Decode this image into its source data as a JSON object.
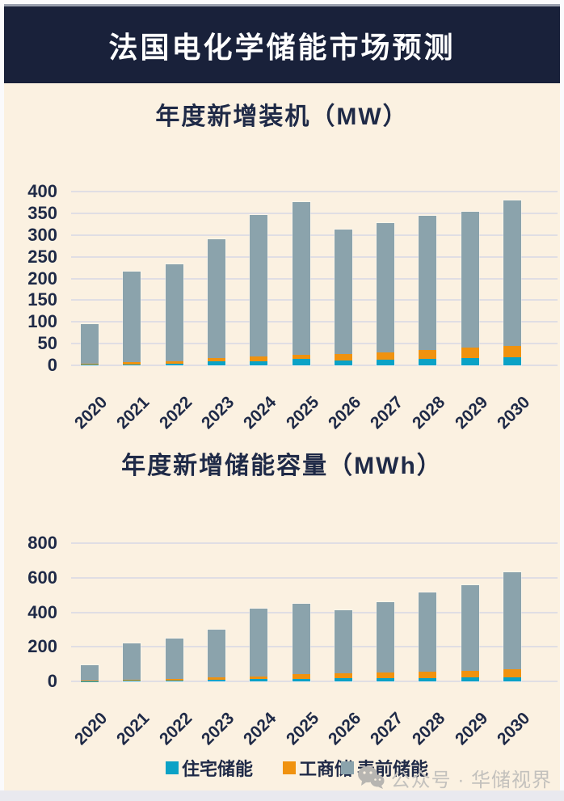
{
  "page": {
    "banner_title": "法国电化学储能市场预测",
    "watermark_text": "公众号 · 华储视界"
  },
  "legend": {
    "items": [
      {
        "label": "住宅储能",
        "color": "#0ba2c6"
      },
      {
        "label": "工商储",
        "color": "#f0920f"
      },
      {
        "label": "表前储能",
        "color": "#8ba3ac"
      }
    ]
  },
  "colors": {
    "banner_bg": "#19213a",
    "content_bg": "#fbf1e1",
    "text_navy": "#1f2a47",
    "gridline": "#e0dee4",
    "residential_blue": "#0ba2c6",
    "commercial_orange": "#f0920f",
    "front_of_meter_gray": "#8ba3ac"
  },
  "chart_data": [
    {
      "type": "bar",
      "stacked": true,
      "title": "年度新增装机（MW）",
      "categories": [
        "2020",
        "2021",
        "2022",
        "2023",
        "2024",
        "2025",
        "2026",
        "2027",
        "2028",
        "2029",
        "2030"
      ],
      "series": [
        {
          "name": "住宅储能",
          "color": "#0ba2c6",
          "values": [
            1,
            2,
            3,
            9,
            10,
            14,
            11,
            13,
            15,
            17,
            18
          ]
        },
        {
          "name": "工商储",
          "color": "#f0920f",
          "values": [
            2,
            5,
            6,
            8,
            11,
            11,
            16,
            17,
            20,
            24,
            27
          ]
        },
        {
          "name": "表前储能",
          "color": "#8ba3ac",
          "values": [
            92,
            208,
            223,
            273,
            326,
            350,
            285,
            297,
            310,
            313,
            335
          ]
        }
      ],
      "totals": [
        95,
        215,
        232,
        290,
        347,
        375,
        312,
        327,
        345,
        354,
        380
      ],
      "xlabel": "",
      "ylabel": "",
      "ylim": [
        0,
        400
      ],
      "yticks": [
        0,
        50,
        100,
        150,
        200,
        250,
        300,
        350,
        400
      ],
      "grid": true,
      "legend_position": "bottom"
    },
    {
      "type": "bar",
      "stacked": true,
      "title": "年度新增储能容量（MWh）",
      "categories": [
        "2020",
        "2021",
        "2022",
        "2023",
        "2024",
        "2025",
        "2026",
        "2027",
        "2028",
        "2029",
        "2030"
      ],
      "series": [
        {
          "name": "住宅储能",
          "color": "#0ba2c6",
          "values": [
            1,
            3,
            4,
            10,
            12,
            14,
            18,
            20,
            20,
            24,
            25
          ]
        },
        {
          "name": "工商储",
          "color": "#f0920f",
          "values": [
            2,
            8,
            12,
            12,
            16,
            27,
            28,
            30,
            35,
            37,
            45
          ]
        },
        {
          "name": "表前储能",
          "color": "#8ba3ac",
          "values": [
            92,
            207,
            234,
            278,
            392,
            409,
            364,
            410,
            460,
            494,
            560
          ]
        }
      ],
      "totals": [
        95,
        218,
        250,
        300,
        420,
        450,
        410,
        460,
        515,
        555,
        630
      ],
      "xlabel": "",
      "ylabel": "",
      "ylim": [
        0,
        800
      ],
      "yticks": [
        0,
        200,
        400,
        600,
        800
      ],
      "grid": true,
      "legend_position": "bottom"
    }
  ]
}
